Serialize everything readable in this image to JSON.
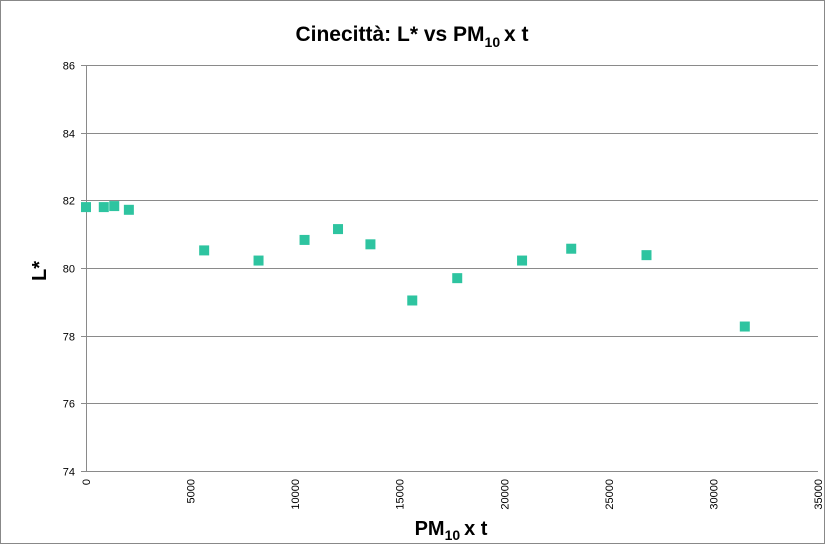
{
  "chart_data": {
    "type": "scatter",
    "title": "Cinecittà: L* vs PM",
    "title_sub": "10",
    "title_suffix": "x t",
    "xlabel": "PM",
    "xlabel_sub": "10",
    "xlabel_suffix": "x t",
    "ylabel": "L*",
    "xlim": [
      0,
      35000
    ],
    "ylim": [
      74,
      86
    ],
    "xticks": [
      0,
      5000,
      10000,
      15000,
      20000,
      25000,
      30000,
      35000
    ],
    "yticks": [
      74,
      76,
      78,
      80,
      82,
      84,
      86
    ],
    "grid": "horizontal",
    "marker": "square",
    "marker_color": "#2ec4a0",
    "x": [
      0,
      850,
      1350,
      2050,
      5650,
      8250,
      10450,
      12050,
      13600,
      15600,
      17750,
      20850,
      23200,
      26800,
      31500
    ],
    "y": [
      81.8,
      81.8,
      81.83,
      81.72,
      80.52,
      80.22,
      80.83,
      81.15,
      80.7,
      79.04,
      79.7,
      80.22,
      80.57,
      80.38,
      78.27
    ]
  }
}
